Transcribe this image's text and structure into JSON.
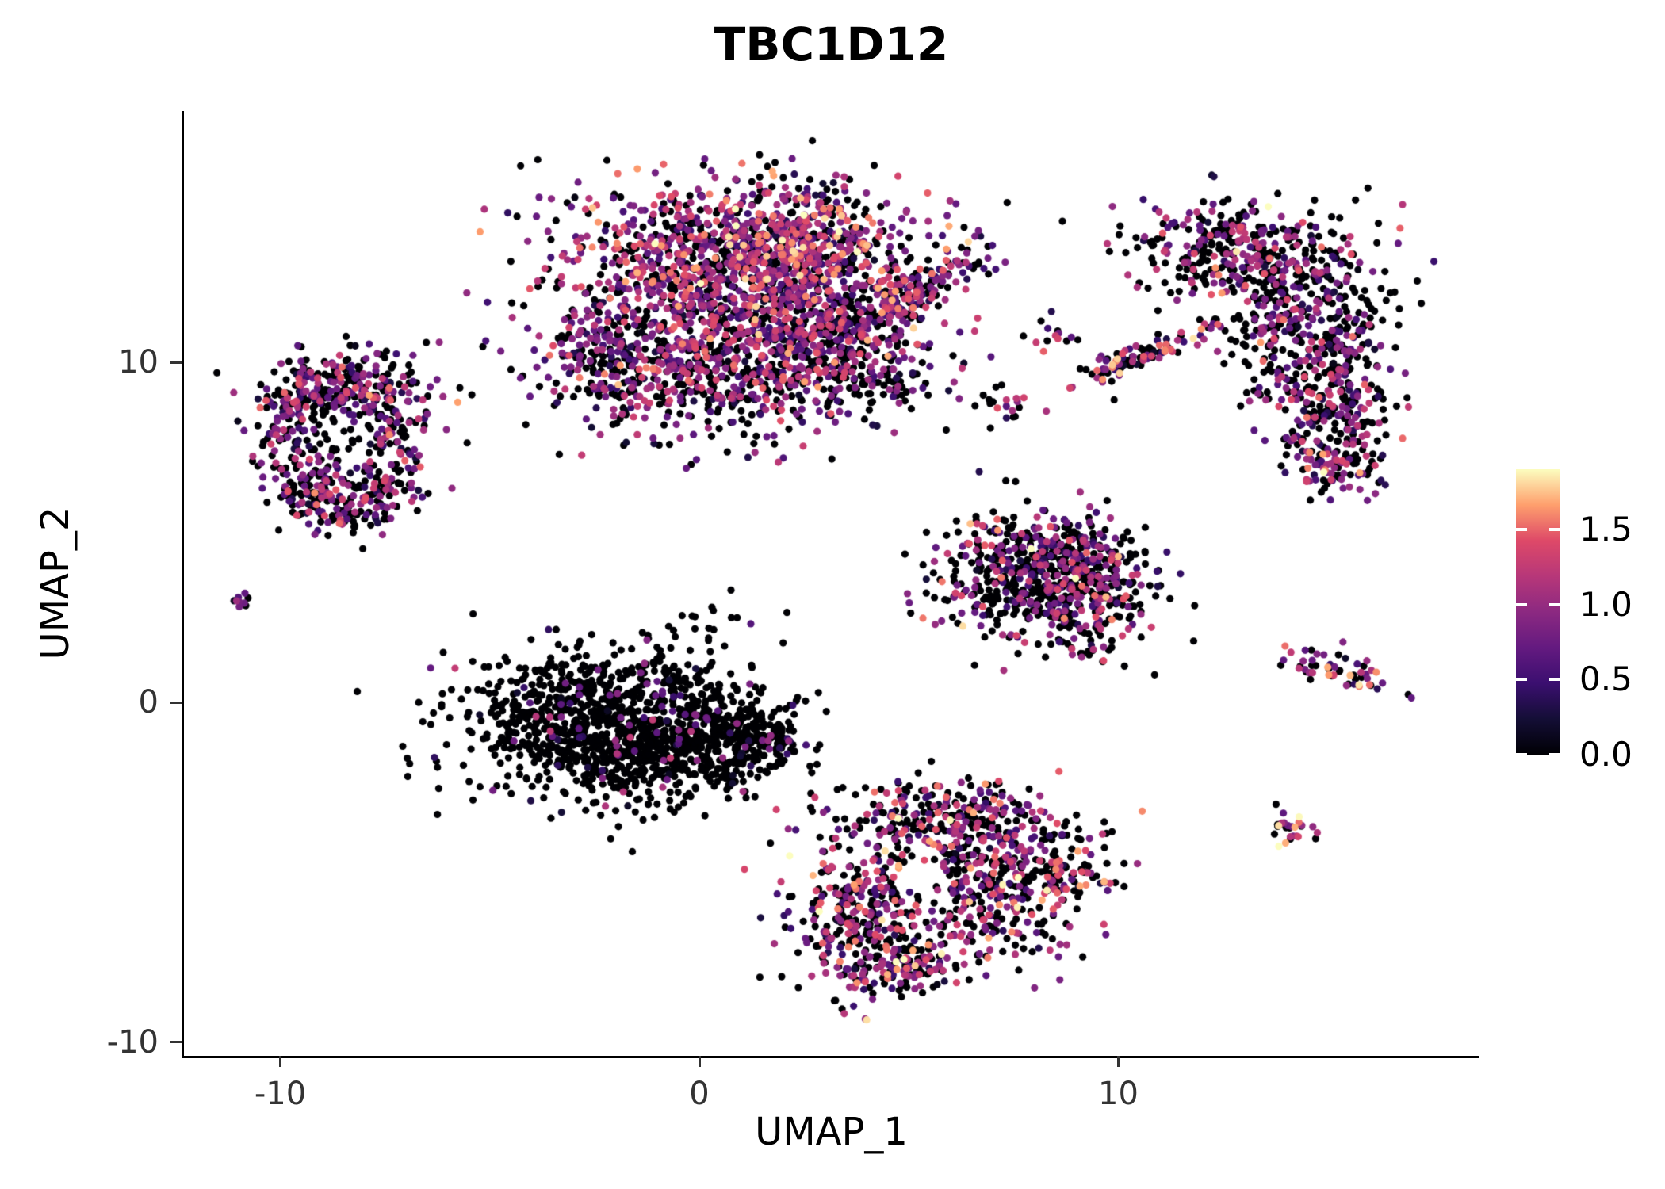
{
  "chart_data": {
    "type": "scatter",
    "title": "TBC1D12",
    "xlabel": "UMAP_1",
    "ylabel": "UMAP_2",
    "xlim": [
      -12.3,
      18.6
    ],
    "ylim": [
      -10.4,
      17.4
    ],
    "grid": false,
    "background": "#ffffff",
    "x_ticks": [
      {
        "value": -10,
        "label": "-10"
      },
      {
        "value": 0,
        "label": "0"
      },
      {
        "value": 10,
        "label": "10"
      }
    ],
    "y_ticks": [
      {
        "value": -10,
        "label": "-10"
      },
      {
        "value": 0,
        "label": "0"
      },
      {
        "value": 10,
        "label": "10"
      }
    ],
    "legend": {
      "position": "right",
      "min": 0,
      "max": 1.9,
      "ticks": [
        {
          "value": 1.5,
          "label": "1.5"
        },
        {
          "value": 1.0,
          "label": "1.0"
        },
        {
          "value": 0.5,
          "label": "0.5"
        },
        {
          "value": 0.0,
          "label": "0.0"
        }
      ]
    },
    "colormap": {
      "name": "magma",
      "domain": [
        0,
        1.9
      ],
      "stops": [
        "#000004",
        "#140e36",
        "#3b0f70",
        "#641a80",
        "#8c2981",
        "#b73779",
        "#de4968",
        "#fe9f6d",
        "#fcfdbf"
      ]
    },
    "point_radius_px": 4.6,
    "avoid": [
      {
        "x": 5.3,
        "y": -5.3,
        "r": 0.65
      }
    ],
    "clusters": [
      {
        "name": "main-top-left",
        "kind": "blob",
        "cx": 0.2,
        "cy": 12.9,
        "sx": 1.8,
        "sy": 1.25,
        "n": 750,
        "zero_frac": 0.34,
        "vmax": 1.25
      },
      {
        "name": "main-top-right",
        "kind": "blob",
        "cx": 2.4,
        "cy": 13.4,
        "sx": 1.4,
        "sy": 1.0,
        "n": 520,
        "zero_frac": 0.3,
        "vmax": 1.35
      },
      {
        "name": "main-bottom-left",
        "kind": "blob",
        "cx": 0.0,
        "cy": 10.0,
        "sx": 1.9,
        "sy": 1.15,
        "n": 600,
        "zero_frac": 0.46,
        "vmax": 1.15
      },
      {
        "name": "main-bottom-right",
        "kind": "blob",
        "cx": 2.9,
        "cy": 10.7,
        "sx": 1.3,
        "sy": 1.1,
        "n": 430,
        "zero_frac": 0.46,
        "vmax": 1.15
      },
      {
        "name": "main-left-tip",
        "kind": "blob",
        "cx": -2.3,
        "cy": 10.4,
        "sx": 0.75,
        "sy": 0.85,
        "n": 130,
        "zero_frac": 0.5,
        "vmax": 1.0
      },
      {
        "name": "main-arm",
        "kind": "streak",
        "cx": 5.0,
        "cy": 11.9,
        "sx": 1.25,
        "sy": 0.33,
        "rot": 38,
        "n": 170,
        "zero_frac": 0.36,
        "vmax": 1.3
      },
      {
        "name": "main-arm-base",
        "kind": "blob",
        "cx": 4.3,
        "cy": 9.5,
        "sx": 0.85,
        "sy": 0.5,
        "n": 60,
        "zero_frac": 0.6,
        "vmax": 1.0
      },
      {
        "name": "left-ring",
        "kind": "ring",
        "cx": -8.6,
        "cy": 7.7,
        "rx": 1.55,
        "ry": 1.9,
        "rsd": 0.3,
        "n": 430,
        "zero_frac": 0.52,
        "vmax": 1.1
      },
      {
        "name": "left-ring-top",
        "kind": "blob",
        "cx": -8.7,
        "cy": 9.2,
        "sx": 0.95,
        "sy": 0.55,
        "n": 140,
        "zero_frac": 0.45,
        "vmax": 1.1
      },
      {
        "name": "left-ring-bottom",
        "kind": "blob",
        "cx": -8.2,
        "cy": 6.0,
        "sx": 0.8,
        "sy": 0.45,
        "n": 90,
        "zero_frac": 0.5,
        "vmax": 1.1
      },
      {
        "name": "left-ring-hole",
        "kind": "blob",
        "cx": -8.6,
        "cy": 7.6,
        "sx": 0.5,
        "sy": 0.4,
        "n": 25,
        "zero_frac": 0.78,
        "vmax": 0.9
      },
      {
        "name": "far-left-dot",
        "kind": "blob",
        "cx": -10.9,
        "cy": 3.0,
        "sx": 0.18,
        "sy": 0.16,
        "n": 9,
        "zero_frac": 0.35,
        "vmax": 1.0
      },
      {
        "name": "center-black-left",
        "kind": "blob",
        "cx": -2.8,
        "cy": -0.5,
        "sx": 1.5,
        "sy": 0.95,
        "n": 650,
        "zero_frac": 0.93,
        "vmax": 0.9
      },
      {
        "name": "center-black-mid",
        "kind": "blob",
        "cx": -1.2,
        "cy": -1.5,
        "sx": 1.3,
        "sy": 0.85,
        "n": 420,
        "zero_frac": 0.93,
        "vmax": 0.9
      },
      {
        "name": "center-black-right",
        "kind": "blob",
        "cx": 0.6,
        "cy": -0.9,
        "sx": 1.0,
        "sy": 0.75,
        "n": 260,
        "zero_frac": 0.92,
        "vmax": 0.9
      },
      {
        "name": "center-black-tip",
        "kind": "streak",
        "cx": 1.7,
        "cy": -1.1,
        "sx": 0.55,
        "sy": 0.3,
        "rot": -15,
        "n": 70,
        "zero_frac": 0.9,
        "vmax": 0.9
      },
      {
        "name": "center-black-top",
        "kind": "blob",
        "cx": -0.6,
        "cy": 0.9,
        "sx": 0.8,
        "sy": 0.45,
        "n": 60,
        "zero_frac": 0.9,
        "vmax": 0.8
      },
      {
        "name": "center-black-above",
        "kind": "blob",
        "cx": 0.6,
        "cy": 2.2,
        "sx": 0.5,
        "sy": 0.5,
        "n": 14,
        "zero_frac": 0.85,
        "vmax": 0.8
      },
      {
        "name": "mid-right-main",
        "kind": "blob",
        "cx": 7.9,
        "cy": 3.7,
        "sx": 1.15,
        "sy": 0.95,
        "n": 430,
        "zero_frac": 0.62,
        "vmax": 1.15
      },
      {
        "name": "mid-right-east",
        "kind": "blob",
        "cx": 9.3,
        "cy": 3.3,
        "sx": 0.75,
        "sy": 0.85,
        "n": 240,
        "zero_frac": 0.6,
        "vmax": 1.15
      },
      {
        "name": "mid-right-top",
        "kind": "blob",
        "cx": 8.6,
        "cy": 4.6,
        "sx": 0.9,
        "sy": 0.4,
        "n": 90,
        "zero_frac": 0.6,
        "vmax": 1.1
      },
      {
        "name": "small-pair",
        "kind": "blob",
        "cx": 7.4,
        "cy": 8.7,
        "sx": 0.5,
        "sy": 0.35,
        "n": 20,
        "zero_frac": 0.6,
        "vmax": 1.0
      },
      {
        "name": "small-upper",
        "kind": "blob",
        "cx": 8.5,
        "cy": 10.8,
        "sx": 0.3,
        "sy": 0.28,
        "n": 14,
        "zero_frac": 0.45,
        "vmax": 1.2
      },
      {
        "name": "diagonal-streak",
        "kind": "streak",
        "cx": 10.6,
        "cy": 10.2,
        "sx": 1.05,
        "sy": 0.2,
        "rot": 27,
        "n": 95,
        "zero_frac": 0.35,
        "vmax": 1.35
      },
      {
        "name": "right-crescent-top",
        "kind": "streak",
        "cx": 13.2,
        "cy": 13.1,
        "sx": 1.5,
        "sy": 0.85,
        "rot": -8,
        "n": 400,
        "zero_frac": 0.56,
        "vmax": 1.15
      },
      {
        "name": "right-crescent-mid",
        "kind": "blob",
        "cx": 14.5,
        "cy": 11.0,
        "sx": 0.95,
        "sy": 1.0,
        "n": 260,
        "zero_frac": 0.6,
        "vmax": 1.1
      },
      {
        "name": "right-crescent-low",
        "kind": "blob",
        "cx": 15.0,
        "cy": 8.7,
        "sx": 0.75,
        "sy": 1.05,
        "n": 230,
        "zero_frac": 0.56,
        "vmax": 1.15
      },
      {
        "name": "right-crescent-tail",
        "kind": "blob",
        "cx": 15.2,
        "cy": 7.0,
        "sx": 0.5,
        "sy": 0.45,
        "n": 80,
        "zero_frac": 0.5,
        "vmax": 1.15
      },
      {
        "name": "small-right",
        "kind": "streak",
        "cx": 15.3,
        "cy": 0.9,
        "sx": 0.7,
        "sy": 0.22,
        "rot": -18,
        "n": 55,
        "zero_frac": 0.4,
        "vmax": 1.3
      },
      {
        "name": "small-bottom-right",
        "kind": "blob",
        "cx": 14.2,
        "cy": -3.7,
        "sx": 0.33,
        "sy": 0.28,
        "n": 28,
        "zero_frac": 0.35,
        "vmax": 1.5
      },
      {
        "name": "bottom-upper-lobe",
        "kind": "streak",
        "cx": 6.0,
        "cy": -3.3,
        "sx": 1.6,
        "sy": 0.55,
        "rot": -5,
        "n": 260,
        "zero_frac": 0.5,
        "vmax": 1.2,
        "respect_avoid": true
      },
      {
        "name": "bottom-main",
        "kind": "blob",
        "cx": 6.9,
        "cy": -5.4,
        "sx": 1.25,
        "sy": 1.0,
        "n": 340,
        "zero_frac": 0.5,
        "vmax": 1.25,
        "respect_avoid": true
      },
      {
        "name": "bottom-left-lobe",
        "kind": "blob",
        "cx": 3.9,
        "cy": -6.2,
        "sx": 0.85,
        "sy": 1.15,
        "n": 300,
        "zero_frac": 0.44,
        "vmax": 1.3,
        "respect_avoid": true
      },
      {
        "name": "bottom-tip",
        "kind": "blob",
        "cx": 4.9,
        "cy": -7.7,
        "sx": 0.85,
        "sy": 0.4,
        "n": 130,
        "zero_frac": 0.5,
        "vmax": 1.25,
        "respect_avoid": true
      },
      {
        "name": "bottom-right-tip",
        "kind": "streak",
        "cx": 8.7,
        "cy": -5.1,
        "sx": 0.55,
        "sy": 0.3,
        "rot": 10,
        "n": 60,
        "zero_frac": 0.45,
        "vmax": 1.35
      },
      {
        "name": "bottom-hole-dots",
        "kind": "blob",
        "cx": 5.5,
        "cy": -5.7,
        "sx": 0.45,
        "sy": 0.35,
        "n": 12,
        "zero_frac": 0.85,
        "vmax": 0.9
      }
    ],
    "singles": [
      [
        6.9,
        12.6,
        0
      ],
      [
        7.3,
        12.95,
        0.85
      ],
      [
        0.3,
        2.8,
        0
      ],
      [
        2.0,
        1.75,
        0
      ],
      [
        -5.4,
        2.6,
        0
      ],
      [
        16.2,
        9.0,
        0.4
      ],
      [
        9.9,
        8.9,
        0
      ]
    ]
  }
}
